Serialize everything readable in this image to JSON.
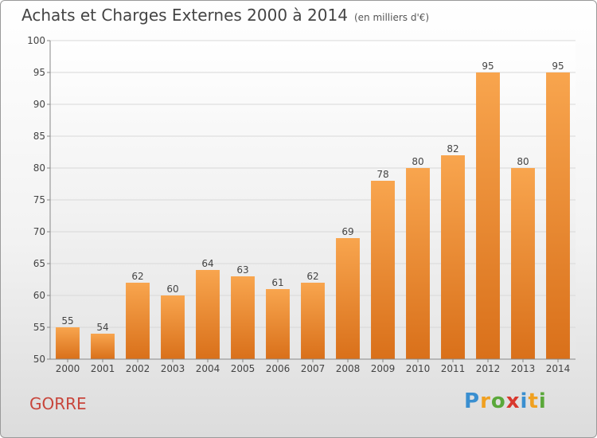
{
  "title": "Achats et Charges Externes 2000 à 2014",
  "unit": "(en milliers d'€)",
  "commune": "GORRE",
  "logo": {
    "text": "Proxiti",
    "letters": [
      {
        "ch": "P",
        "color": "#3a8fd0"
      },
      {
        "ch": "r",
        "color": "#f0a020"
      },
      {
        "ch": "o",
        "color": "#5aa83a"
      },
      {
        "ch": "x",
        "color": "#d8382e"
      },
      {
        "ch": "i",
        "color": "#3a8fd0"
      },
      {
        "ch": "t",
        "color": "#f0a020"
      },
      {
        "ch": "i",
        "color": "#5aa83a"
      }
    ]
  },
  "chart_data": {
    "type": "bar",
    "title": "Achats et Charges Externes 2000 à 2014",
    "categories": [
      "2000",
      "2001",
      "2002",
      "2003",
      "2004",
      "2005",
      "2006",
      "2007",
      "2008",
      "2009",
      "2010",
      "2011",
      "2012",
      "2013",
      "2014"
    ],
    "values": [
      55,
      54,
      62,
      60,
      64,
      63,
      61,
      62,
      69,
      78,
      80,
      82,
      95,
      80,
      95
    ],
    "ylim": [
      50,
      100
    ],
    "yticks": [
      50,
      55,
      60,
      65,
      70,
      75,
      80,
      85,
      90,
      95,
      100
    ],
    "grid": true,
    "bar_color_top": "#f8a54e",
    "bar_color_bottom": "#d9701a",
    "xlabel": "",
    "ylabel": ""
  }
}
